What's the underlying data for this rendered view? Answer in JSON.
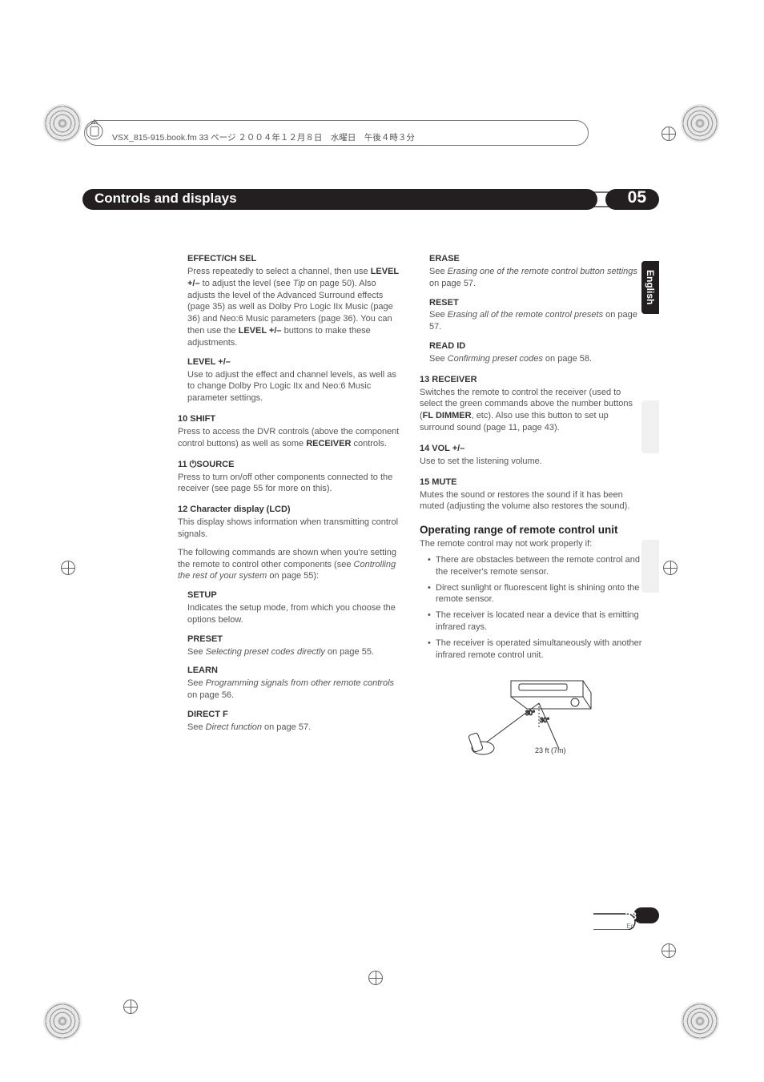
{
  "header_text": "VSX_815-915.book.fm  33 ページ  ２００４年１２月８日　水曜日　午後４時３分",
  "chapter": {
    "title": "Controls and displays",
    "num": "05"
  },
  "lang_tab": "English",
  "page": {
    "num": "33",
    "lang": "En"
  },
  "col1": {
    "effect": {
      "h": "EFFECT/CH SEL",
      "p": "Press repeatedly to select a channel, then use <b>LEVEL +/–</b> to adjust the level (see <em>Tip</em> on page 50). Also adjusts the level of the Advanced Surround effects (page 35) as well as Dolby Pro Logic IIx Music (page 36) and Neo:6 Music parameters (page 36). You can then use the <b>LEVEL +/–</b> buttons to make these adjustments."
    },
    "level": {
      "h": "LEVEL +/–",
      "p": "Use to adjust the effect and channel levels, as well as to change Dolby Pro Logic IIx and Neo:6 Music parameter settings."
    },
    "shift": {
      "h": "10  SHIFT",
      "p": "Press to access the DVR controls (above the component control buttons) as well as some <b>RECEIVER</b> controls."
    },
    "source": {
      "h": "11  ⏻SOURCE",
      "p": "Press to turn on/off other components connected to the receiver (see page 55 for more on this)."
    },
    "lcd": {
      "h": "12  Character display (LCD)",
      "p1": "This display shows information when transmitting control signals.",
      "p2": "The following commands are shown when you're setting the remote to control other components (see <em>Controlling the rest of your system</em> on page 55):"
    },
    "setup": {
      "h": "SETUP",
      "p": "Indicates the setup mode, from which you choose the options below."
    },
    "preset": {
      "h": "PRESET",
      "p": "See <em>Selecting preset codes directly</em> on page 55."
    },
    "learn": {
      "h": "LEARN",
      "p": "See <em>Programming signals from other remote controls</em> on page 56."
    },
    "directf": {
      "h": "DIRECT F",
      "p": "See <em>Direct function</em> on page 57."
    }
  },
  "col2": {
    "erase": {
      "h": "ERASE",
      "p": "See <em>Erasing one of the remote control button settings</em> on page 57."
    },
    "reset": {
      "h": "RESET",
      "p": "See <em>Erasing all of the remote control presets</em> on page 57."
    },
    "readid": {
      "h": "READ ID",
      "p": "See <em>Confirming preset codes</em> on page 58."
    },
    "receiver": {
      "h": "13  RECEIVER",
      "p": "Switches the remote to control the receiver (used to select the green commands above the number buttons (<b>FL DIMMER</b>, etc). Also use this button to set up surround sound (page 11, page 43)."
    },
    "vol": {
      "h": "14  VOL +/–",
      "p": "Use to set the listening volume."
    },
    "mute": {
      "h": "15  MUTE",
      "p": "Mutes the sound or restores the sound if it has been muted (adjusting the volume also restores the sound)."
    },
    "oprange": {
      "h": "Operating range of remote control unit",
      "intro": "The remote control may not work properly if:",
      "b1": "There are obstacles between the remote control and the receiver's remote sensor.",
      "b2": "Direct sunlight or fluorescent light is shining onto the remote sensor.",
      "b3": "The receiver is located near a device that is emitting infrared rays.",
      "b4": "The receiver is operated simultaneously with another infrared remote control unit."
    },
    "diagram": {
      "a1": "30°",
      "a2": "30°",
      "dist": "23 ft (7m)"
    }
  },
  "style": {
    "bg": "#ffffff",
    "text": "#555555",
    "bold": "#333333",
    "black": "#231f20",
    "body_fontsize": 11,
    "h2_fontsize": 13.5,
    "chapter_fontsize": 17,
    "chapnum_fontsize": 21
  }
}
